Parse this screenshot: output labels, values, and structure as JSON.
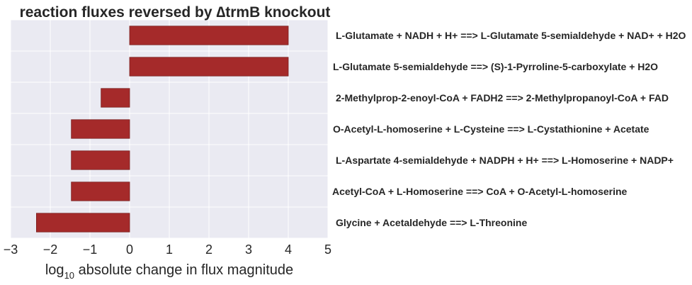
{
  "chart_data": {
    "type": "bar",
    "orientation": "horizontal",
    "title": "reaction fluxes reversed by ∆trmB knockout",
    "xlabel_prefix": "log",
    "xlabel_subscript": "10",
    "xlabel_suffix": " absolute change in flux magnitude",
    "xlim": [
      -3,
      5
    ],
    "xticks": [
      -3,
      -2,
      -1,
      0,
      1,
      2,
      3,
      4,
      5
    ],
    "xtick_labels": [
      "−3",
      "−2",
      "−1",
      "0",
      "1",
      "2",
      "3",
      "4",
      "5"
    ],
    "grid": true,
    "bar_color": "#a52a2a",
    "background_color": "#eaeaf2",
    "categories": [
      "L-Glutamate + NADH + H+ ==> L-Glutamate 5-semialdehyde + NAD+ + H2O",
      "L-Glutamate 5-semialdehyde  ==>  (S)-1-Pyrroline-5-carboxylate + H2O",
      "2-Methylprop-2-enoyl-CoA + FADH2 ==> 2-Methylpropanoyl-CoA + FAD",
      "O-Acetyl-L-homoserine + L-Cysteine  ==>  L-Cystathionine + Acetate",
      "L-Aspartate 4-semialdehyde + NADPH + H+ ==> L-Homoserine + NADP+",
      "Acetyl-CoA + L-Homoserine  ==>  CoA + O-Acetyl-L-homoserine",
      "Glycine + Acetaldehyde ==> L-Threonine"
    ],
    "values": [
      4.0,
      4.0,
      -0.72,
      -1.47,
      -1.47,
      -1.47,
      -2.35
    ]
  }
}
